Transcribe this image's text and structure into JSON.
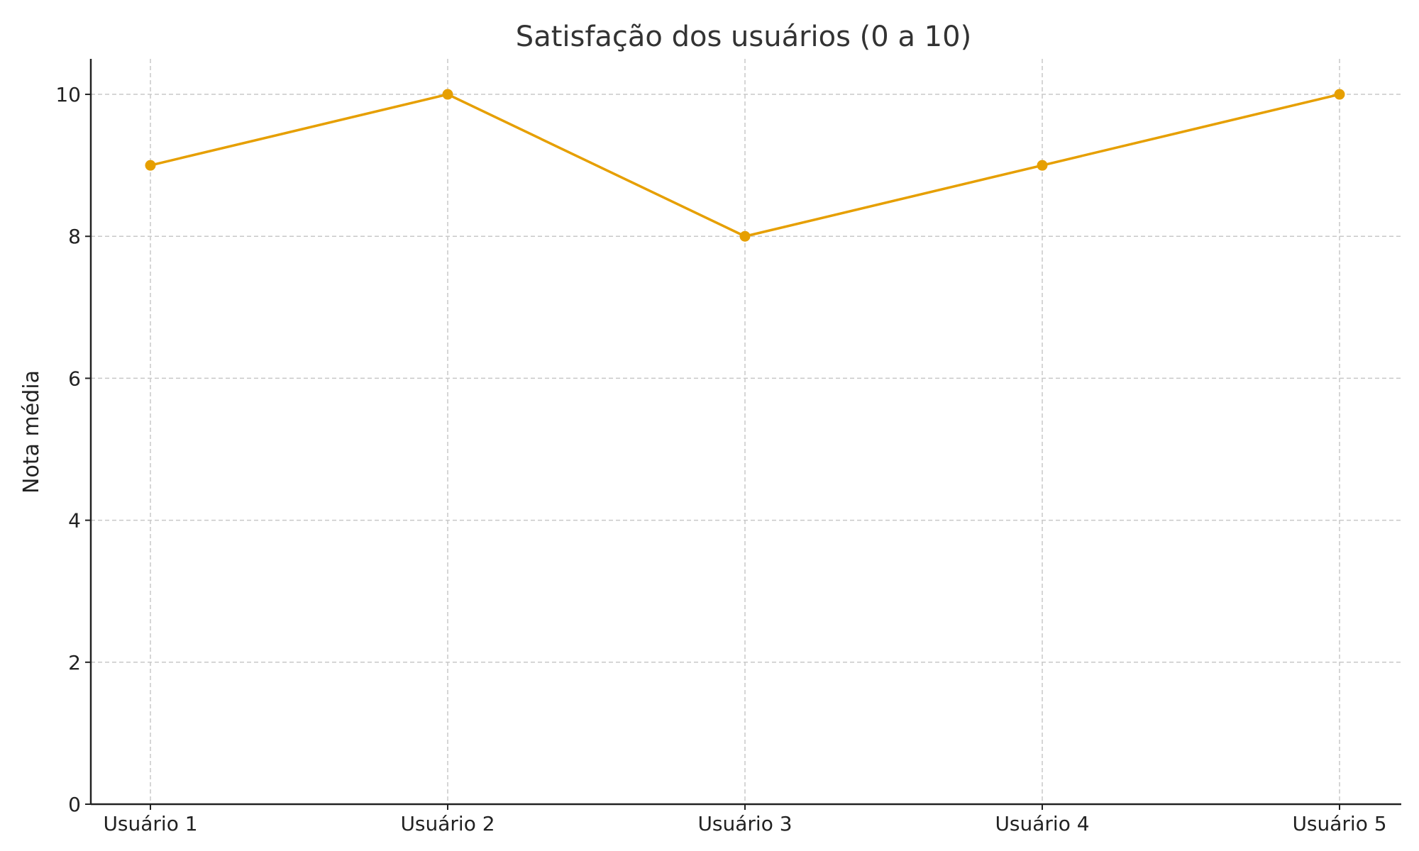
{
  "chart_data": {
    "type": "line",
    "title": "Satisfação dos usuários (0 a 10)",
    "xlabel": "",
    "ylabel": "Nota média",
    "categories": [
      "Usuário 1",
      "Usuário 2",
      "Usuário 3",
      "Usuário 4",
      "Usuário 5"
    ],
    "series": [
      {
        "values": [
          9,
          10,
          8,
          9,
          10
        ]
      }
    ],
    "ylim": [
      0,
      10.5
    ],
    "yticks": [
      0,
      2,
      4,
      6,
      8,
      10
    ],
    "grid": true,
    "line_color": "#E69F00",
    "grid_color": "#c8c8c8",
    "axis_color": "#222222"
  }
}
